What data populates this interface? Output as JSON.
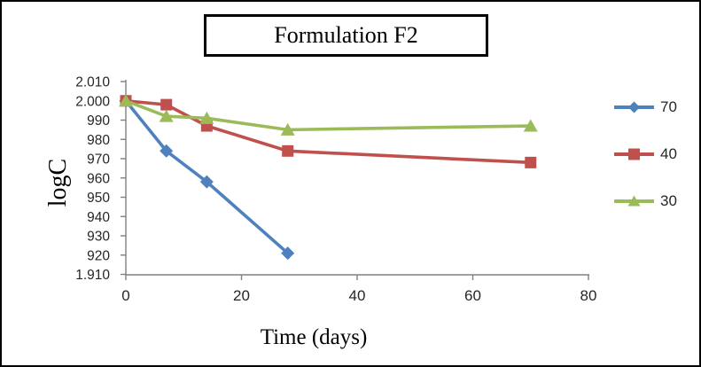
{
  "figure": {
    "title": "Formulation F2",
    "y_axis_label": "logC",
    "x_axis_label": "Time (days)"
  },
  "chart_data": {
    "type": "line",
    "title": "Formulation F2",
    "xlabel": "Time (days)",
    "ylabel": "logC",
    "x": [
      0,
      7,
      14,
      28,
      70
    ],
    "series": [
      {
        "name": "70",
        "color": "#4F81BD",
        "marker": "diamond",
        "values": [
          2.0,
          1.974,
          1.958,
          1.921,
          null
        ]
      },
      {
        "name": "40",
        "color": "#C0504D",
        "marker": "square",
        "values": [
          2.0,
          1.998,
          1.987,
          1.974,
          1.968
        ]
      },
      {
        "name": "30",
        "color": "#9BBB59",
        "marker": "triangle",
        "values": [
          2.0,
          1.992,
          1.991,
          1.985,
          1.987
        ]
      }
    ],
    "xlim": [
      0,
      80
    ],
    "ylim": [
      1.91,
      2.01
    ],
    "x_ticks": [
      0,
      20,
      40,
      60,
      80
    ],
    "y_ticks": [
      2.01,
      2.0,
      1.99,
      1.98,
      1.97,
      1.96,
      1.95,
      1.94,
      1.93,
      1.92,
      1.91
    ],
    "y_tick_labels_displayed": [
      "2.010",
      "2.000",
      "990",
      "980",
      "970",
      "960",
      "950",
      "940",
      "930",
      "920",
      "1.910"
    ],
    "grid": false,
    "legend_position": "right",
    "legend_items": [
      "70",
      "40",
      "30"
    ],
    "axis_color": "#808080",
    "tick_text_color": "#262626",
    "border_color": "#000000"
  }
}
